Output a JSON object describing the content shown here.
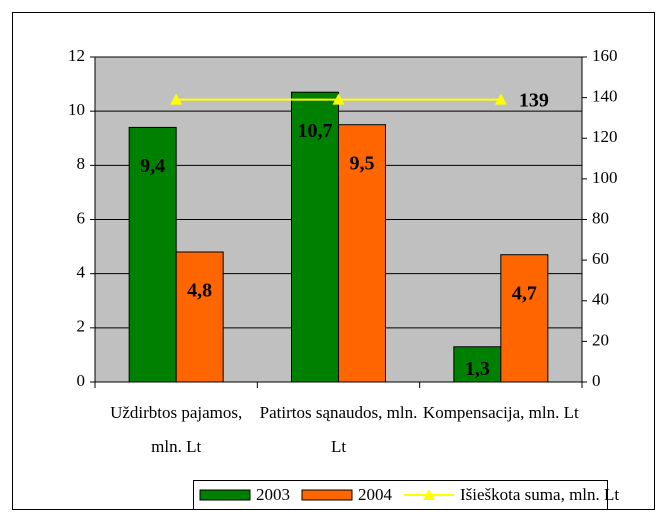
{
  "chart_data": {
    "type": "bar",
    "categories": [
      "Uždirbtos pajamos, mln. Lt",
      "Patirtos sąnaudos, mln. Lt",
      "Kompensacija, mln. Lt"
    ],
    "series": [
      {
        "name": "2003",
        "color": "#008000",
        "values": [
          9.4,
          10.7,
          1.3
        ],
        "value_labels": [
          "9,4",
          "10,7",
          "1,3"
        ]
      },
      {
        "name": "2004",
        "color": "#ff6600",
        "values": [
          4.8,
          9.5,
          4.7
        ],
        "value_labels": [
          "4,8",
          "9,5",
          "4,7"
        ]
      },
      {
        "name": "Išieškota suma, mln. Lt",
        "type": "line",
        "axis": "y2",
        "color": "#ffff00",
        "values": [
          139,
          139,
          139
        ],
        "value_labels": [
          null,
          null,
          "139"
        ]
      }
    ],
    "ylim": [
      0,
      12
    ],
    "yticks": [
      0,
      2,
      4,
      6,
      8,
      10,
      12
    ],
    "y2lim": [
      0,
      160
    ],
    "y2ticks": [
      0,
      20,
      40,
      60,
      80,
      100,
      120,
      140,
      160
    ],
    "grid": true,
    "legend": "bottom"
  }
}
